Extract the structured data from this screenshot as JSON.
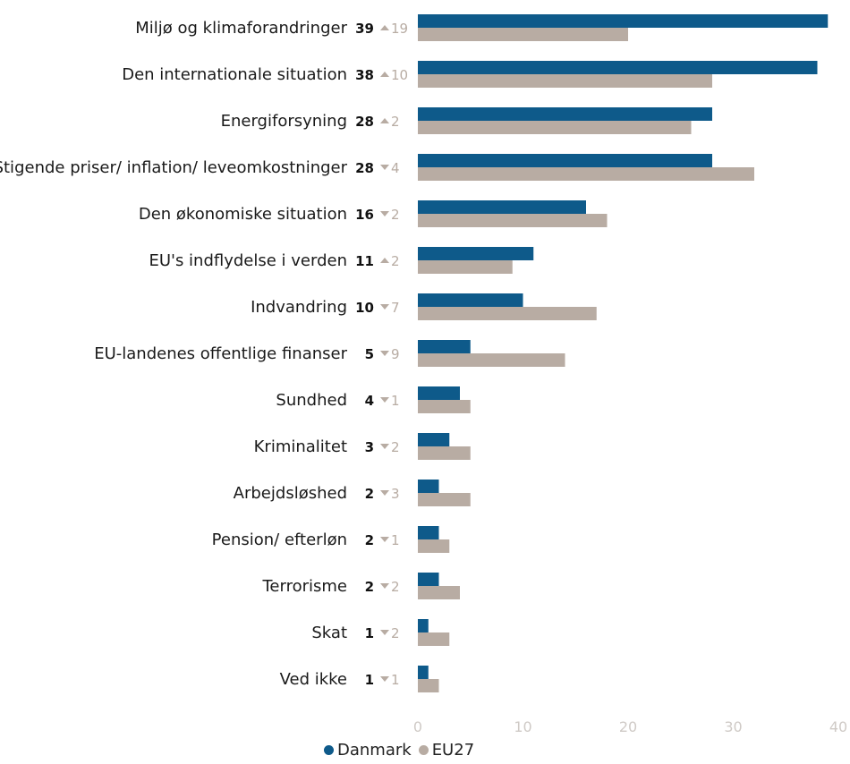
{
  "chart_data": {
    "type": "bar",
    "orientation": "horizontal",
    "categories": [
      "Miljø og klimaforandringer",
      "Den internationale situation",
      "Energiforsyning",
      "Stigende priser/ inflation/ leveomkostninger",
      "Den økonomiske situation",
      "EU's indflydelse i verden",
      "Indvandring",
      "EU-landenes offentlige finanser",
      "Sundhed",
      "Kriminalitet",
      "Arbejdsløshed",
      "Pension/ efterløn",
      "Terrorisme",
      "Skat",
      "Ved ikke"
    ],
    "series": [
      {
        "name": "Danmark",
        "color": "#0e5a8a",
        "values": [
          39,
          38,
          28,
          28,
          16,
          11,
          10,
          5,
          4,
          3,
          2,
          2,
          2,
          1,
          1
        ]
      },
      {
        "name": "EU27",
        "color": "#b8aca3",
        "values": [
          20,
          28,
          26,
          32,
          18,
          9,
          17,
          14,
          5,
          5,
          5,
          3,
          4,
          3,
          2
        ]
      }
    ],
    "danmark_labels": [
      "39",
      "38",
      "28",
      "28",
      "16",
      "11",
      "10",
      "5",
      "4",
      "3",
      "2",
      "2",
      "2",
      "1",
      "1"
    ],
    "changes": [
      {
        "dir": "up",
        "value": "19"
      },
      {
        "dir": "up",
        "value": "10"
      },
      {
        "dir": "up",
        "value": "2"
      },
      {
        "dir": "down",
        "value": "4"
      },
      {
        "dir": "down",
        "value": "2"
      },
      {
        "dir": "up",
        "value": "2"
      },
      {
        "dir": "down",
        "value": "7"
      },
      {
        "dir": "down",
        "value": "9"
      },
      {
        "dir": "down",
        "value": "1"
      },
      {
        "dir": "down",
        "value": "2"
      },
      {
        "dir": "down",
        "value": "3"
      },
      {
        "dir": "down",
        "value": "1"
      },
      {
        "dir": "down",
        "value": "2"
      },
      {
        "dir": "down",
        "value": "2"
      },
      {
        "dir": "down",
        "value": "1"
      }
    ],
    "xlim": [
      0,
      40
    ],
    "xticks": [
      0,
      10,
      20,
      30,
      40
    ],
    "title": "",
    "xlabel": "",
    "ylabel": "",
    "grid": false,
    "legend_position": "bottom-center"
  },
  "legend": {
    "danmark": "Danmark",
    "eu27": "EU27"
  }
}
